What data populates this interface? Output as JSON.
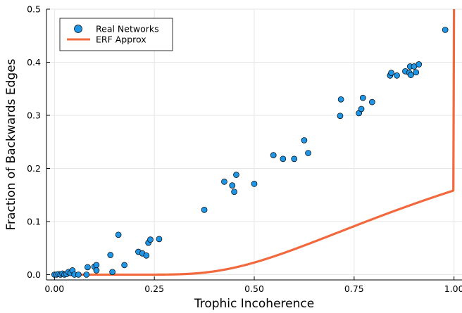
{
  "chart_data": {
    "type": "scatter",
    "xlabel": "Trophic Incoherence",
    "ylabel": "Fraction of Backwards Edges",
    "xlim": [
      -0.02,
      1.02
    ],
    "ylim": [
      -0.01,
      0.5
    ],
    "x_ticks": [
      0.0,
      0.25,
      0.5,
      0.75,
      1.0
    ],
    "x_tick_labels": [
      "0.00",
      "0.25",
      "0.50",
      "0.75",
      "1.00"
    ],
    "y_ticks": [
      0.0,
      0.1,
      0.2,
      0.3,
      0.4,
      0.5
    ],
    "y_tick_labels": [
      "0.0",
      "0.1",
      "0.2",
      "0.3",
      "0.4",
      "0.5"
    ],
    "grid": true,
    "legend_position": "top-left",
    "colors": {
      "scatter": "#1f95e6",
      "line": "#f2693e"
    },
    "series": [
      {
        "name": "Real Networks",
        "kind": "scatter",
        "points": [
          [
            0.0,
            0.0
          ],
          [
            0.005,
            0.0
          ],
          [
            0.01,
            0.001
          ],
          [
            0.015,
            0.0
          ],
          [
            0.02,
            0.002
          ],
          [
            0.025,
            0.0
          ],
          [
            0.03,
            0.001
          ],
          [
            0.035,
            0.005
          ],
          [
            0.04,
            0.003
          ],
          [
            0.045,
            0.008
          ],
          [
            0.05,
            0.0
          ],
          [
            0.06,
            0.0
          ],
          [
            0.08,
            0.0
          ],
          [
            0.083,
            0.014
          ],
          [
            0.1,
            0.015
          ],
          [
            0.105,
            0.018
          ],
          [
            0.105,
            0.008
          ],
          [
            0.14,
            0.037
          ],
          [
            0.145,
            0.005
          ],
          [
            0.16,
            0.075
          ],
          [
            0.175,
            0.018
          ],
          [
            0.21,
            0.043
          ],
          [
            0.22,
            0.04
          ],
          [
            0.23,
            0.036
          ],
          [
            0.235,
            0.06
          ],
          [
            0.24,
            0.066
          ],
          [
            0.262,
            0.067
          ],
          [
            0.375,
            0.122
          ],
          [
            0.425,
            0.175
          ],
          [
            0.445,
            0.168
          ],
          [
            0.45,
            0.156
          ],
          [
            0.455,
            0.188
          ],
          [
            0.5,
            0.171
          ],
          [
            0.548,
            0.225
          ],
          [
            0.572,
            0.218
          ],
          [
            0.6,
            0.218
          ],
          [
            0.625,
            0.253
          ],
          [
            0.635,
            0.229
          ],
          [
            0.715,
            0.299
          ],
          [
            0.717,
            0.33
          ],
          [
            0.762,
            0.304
          ],
          [
            0.768,
            0.312
          ],
          [
            0.772,
            0.333
          ],
          [
            0.795,
            0.325
          ],
          [
            0.84,
            0.375
          ],
          [
            0.843,
            0.38
          ],
          [
            0.857,
            0.375
          ],
          [
            0.878,
            0.383
          ],
          [
            0.888,
            0.38
          ],
          [
            0.89,
            0.392
          ],
          [
            0.892,
            0.376
          ],
          [
            0.9,
            0.392
          ],
          [
            0.905,
            0.381
          ],
          [
            0.912,
            0.396
          ],
          [
            0.978,
            0.461
          ]
        ]
      },
      {
        "name": "ERF Approx",
        "kind": "line",
        "function": "erf"
      }
    ]
  }
}
